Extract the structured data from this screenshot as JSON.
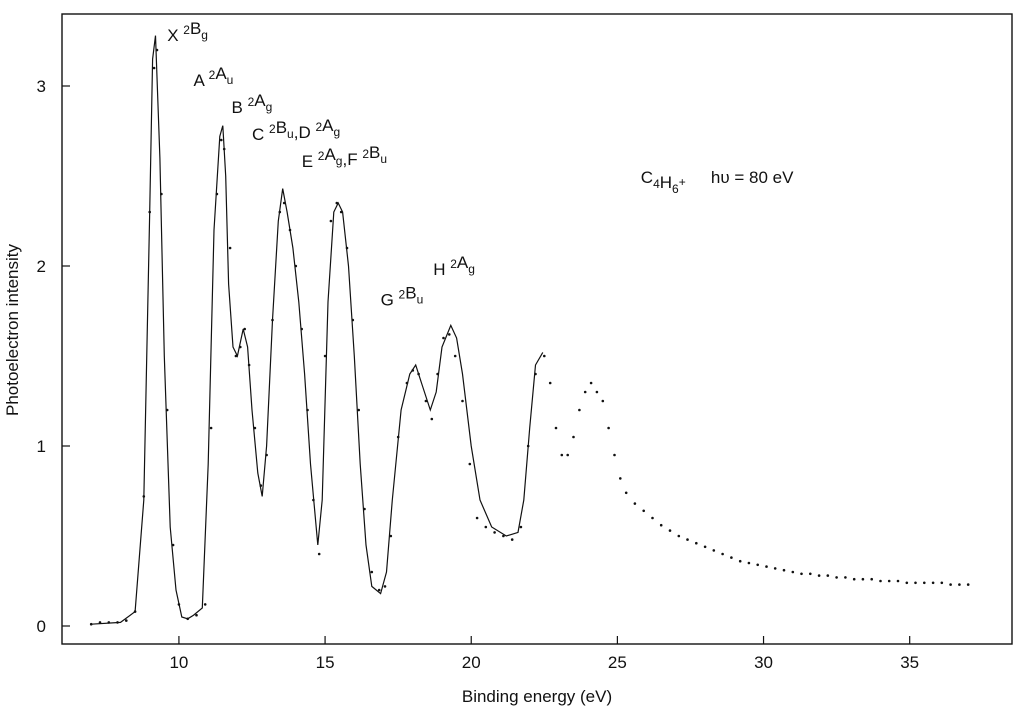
{
  "chart_data": {
    "type": "line",
    "title": "",
    "xlabel": "Binding energy (eV)",
    "ylabel": "Photoelectron intensity",
    "xlim": [
      6.0,
      38.5
    ],
    "ylim": [
      -0.1,
      3.4
    ],
    "xticks": [
      10,
      15,
      20,
      25,
      30,
      35
    ],
    "yticks": [
      0,
      1,
      2,
      3
    ],
    "grid": false,
    "legend": "none",
    "colors": {
      "fit": "#111111",
      "points": "#111111"
    },
    "series": [
      {
        "name": "",
        "style": "fit-line",
        "x": [
          7.0,
          8.0,
          8.5,
          8.8,
          9.0,
          9.1,
          9.2,
          9.35,
          9.5,
          9.7,
          9.9,
          10.1,
          10.3,
          10.5,
          10.8,
          11.0,
          11.2,
          11.4,
          11.5,
          11.6,
          11.7,
          11.85,
          12.0,
          12.2,
          12.35,
          12.5,
          12.7,
          12.85,
          13.0,
          13.2,
          13.4,
          13.55,
          13.7,
          13.9,
          14.1,
          14.3,
          14.5,
          14.75,
          14.9,
          15.1,
          15.3,
          15.45,
          15.6,
          15.8,
          16.0,
          16.2,
          16.4,
          16.6,
          16.9,
          17.1,
          17.3,
          17.6,
          17.9,
          18.1,
          18.3,
          18.6,
          18.8,
          19.0,
          19.3,
          19.5,
          19.7,
          20.0,
          20.3,
          20.7,
          21.2,
          21.6,
          21.8,
          22.0,
          22.2,
          22.45
        ],
        "y": [
          0.01,
          0.02,
          0.08,
          0.7,
          2.3,
          3.15,
          3.28,
          2.6,
          1.5,
          0.55,
          0.2,
          0.05,
          0.04,
          0.06,
          0.1,
          0.9,
          2.2,
          2.72,
          2.78,
          2.5,
          1.9,
          1.55,
          1.5,
          1.65,
          1.55,
          1.2,
          0.85,
          0.72,
          1.0,
          1.7,
          2.25,
          2.43,
          2.3,
          2.1,
          1.8,
          1.4,
          0.9,
          0.45,
          0.7,
          1.8,
          2.3,
          2.35,
          2.3,
          2.0,
          1.5,
          0.9,
          0.45,
          0.22,
          0.18,
          0.3,
          0.7,
          1.2,
          1.4,
          1.45,
          1.35,
          1.2,
          1.3,
          1.55,
          1.67,
          1.6,
          1.4,
          1.0,
          0.7,
          0.55,
          0.5,
          0.52,
          0.7,
          1.1,
          1.45,
          1.52
        ]
      },
      {
        "name": "",
        "style": "dots",
        "x": [
          7.0,
          7.3,
          7.6,
          7.9,
          8.2,
          8.5,
          8.8,
          9.0,
          9.15,
          9.25,
          9.4,
          9.6,
          9.8,
          10.0,
          10.3,
          10.6,
          10.9,
          11.1,
          11.3,
          11.45,
          11.55,
          11.75,
          11.95,
          12.1,
          12.25,
          12.4,
          12.6,
          12.8,
          13.0,
          13.2,
          13.45,
          13.6,
          13.8,
          14.0,
          14.2,
          14.4,
          14.6,
          14.8,
          15.0,
          15.2,
          15.4,
          15.55,
          15.75,
          15.95,
          16.15,
          16.35,
          16.6,
          16.85,
          17.05,
          17.25,
          17.5,
          17.8,
          18.0,
          18.2,
          18.45,
          18.65,
          18.85,
          19.05,
          19.25,
          19.45,
          19.7,
          19.95,
          20.2,
          20.5,
          20.8,
          21.1,
          21.4,
          21.7,
          21.95,
          22.2,
          22.5,
          22.7,
          22.9,
          23.1,
          23.3,
          23.5,
          23.7,
          23.9,
          24.1,
          24.3,
          24.5,
          24.7,
          24.9,
          25.1,
          25.3,
          25.6,
          25.9,
          26.2,
          26.5,
          26.8,
          27.1,
          27.4,
          27.7,
          28.0,
          28.3,
          28.6,
          28.9,
          29.2,
          29.5,
          29.8,
          30.1,
          30.4,
          30.7,
          31.0,
          31.3,
          31.6,
          31.9,
          32.2,
          32.5,
          32.8,
          33.1,
          33.4,
          33.7,
          34.0,
          34.3,
          34.6,
          34.9,
          35.2,
          35.5,
          35.8,
          36.1,
          36.4,
          36.7,
          37.0
        ],
        "y": [
          0.01,
          0.02,
          0.02,
          0.02,
          0.03,
          0.08,
          0.72,
          2.3,
          3.1,
          3.2,
          2.4,
          1.2,
          0.45,
          0.12,
          0.04,
          0.06,
          0.12,
          1.1,
          2.4,
          2.7,
          2.65,
          2.1,
          1.5,
          1.55,
          1.65,
          1.45,
          1.1,
          0.78,
          0.95,
          1.7,
          2.3,
          2.35,
          2.2,
          2.0,
          1.65,
          1.2,
          0.7,
          0.4,
          1.5,
          2.25,
          2.35,
          2.3,
          2.1,
          1.7,
          1.2,
          0.65,
          0.3,
          0.2,
          0.22,
          0.5,
          1.05,
          1.35,
          1.42,
          1.4,
          1.25,
          1.15,
          1.4,
          1.6,
          1.62,
          1.5,
          1.25,
          0.9,
          0.6,
          0.55,
          0.52,
          0.5,
          0.48,
          0.55,
          1.0,
          1.4,
          1.5,
          1.35,
          1.1,
          0.95,
          0.95,
          1.05,
          1.2,
          1.3,
          1.35,
          1.3,
          1.25,
          1.1,
          0.95,
          0.82,
          0.74,
          0.68,
          0.64,
          0.6,
          0.56,
          0.53,
          0.5,
          0.48,
          0.46,
          0.44,
          0.42,
          0.4,
          0.38,
          0.36,
          0.35,
          0.34,
          0.33,
          0.32,
          0.31,
          0.3,
          0.29,
          0.29,
          0.28,
          0.28,
          0.27,
          0.27,
          0.26,
          0.26,
          0.26,
          0.25,
          0.25,
          0.25,
          0.24,
          0.24,
          0.24,
          0.24,
          0.24,
          0.23,
          0.23,
          0.23
        ]
      }
    ],
    "annotations": [
      {
        "id": "x2bg",
        "parts": [
          [
            "X ",
            ""
          ],
          [
            "2",
            "sup"
          ],
          [
            "B",
            ""
          ],
          [
            "g",
            "sub"
          ]
        ],
        "x": 9.6,
        "y": 3.25
      },
      {
        "id": "a2au",
        "parts": [
          [
            "A ",
            ""
          ],
          [
            "2",
            "sup"
          ],
          [
            "A",
            ""
          ],
          [
            "u",
            "sub"
          ]
        ],
        "x": 10.5,
        "y": 3.0
      },
      {
        "id": "b2ag",
        "parts": [
          [
            "B ",
            ""
          ],
          [
            "2",
            "sup"
          ],
          [
            "A",
            ""
          ],
          [
            "g",
            "sub"
          ]
        ],
        "x": 11.8,
        "y": 2.85
      },
      {
        "id": "c2bu-d2ag",
        "parts": [
          [
            "C ",
            ""
          ],
          [
            "2",
            "sup"
          ],
          [
            "B",
            ""
          ],
          [
            "u",
            "sub"
          ],
          [
            ",D ",
            ""
          ],
          [
            "2",
            "sup"
          ],
          [
            "A",
            ""
          ],
          [
            "g",
            "sub"
          ]
        ],
        "x": 12.5,
        "y": 2.7
      },
      {
        "id": "e2ag-f2bu",
        "parts": [
          [
            "E ",
            ""
          ],
          [
            "2",
            "sup"
          ],
          [
            "A",
            ""
          ],
          [
            "g",
            "sub"
          ],
          [
            ",F ",
            ""
          ],
          [
            "2",
            "sup"
          ],
          [
            "B",
            ""
          ],
          [
            "u",
            "sub"
          ]
        ],
        "x": 14.2,
        "y": 2.55
      },
      {
        "id": "h2ag",
        "parts": [
          [
            "H ",
            ""
          ],
          [
            "2",
            "sup"
          ],
          [
            "A",
            ""
          ],
          [
            "g",
            "sub"
          ]
        ],
        "x": 18.7,
        "y": 1.95
      },
      {
        "id": "g2bu",
        "parts": [
          [
            "G ",
            ""
          ],
          [
            "2",
            "sup"
          ],
          [
            "B",
            ""
          ],
          [
            "u",
            "sub"
          ]
        ],
        "x": 16.9,
        "y": 1.78
      },
      {
        "id": "c4h6",
        "parts": [
          [
            "C",
            ""
          ],
          [
            "4",
            "sub"
          ],
          [
            "H",
            ""
          ],
          [
            "6",
            "sub"
          ],
          [
            "+",
            "sup"
          ]
        ],
        "x": 25.8,
        "y": 2.46
      },
      {
        "id": "hv",
        "parts": [
          [
            "hυ = 80 eV",
            ""
          ]
        ],
        "x": 28.2,
        "y": 2.46
      }
    ]
  }
}
